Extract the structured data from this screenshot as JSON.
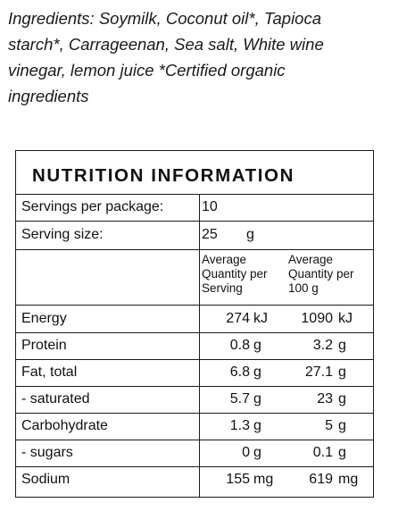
{
  "ingredients": {
    "line1": "Ingredients: Soymilk, Coconut oil*, Tapioca",
    "line2": "starch*, Carrageenan, Sea salt, White wine",
    "line3": "vinegar, lemon juice *Certified organic",
    "line4": "ingredients"
  },
  "nutrition": {
    "title": "NUTRITION INFORMATION",
    "servings_label": "Servings per package:",
    "servings_value": "10",
    "serving_size_label": "Serving size:",
    "serving_size_value": "25",
    "serving_size_unit": "g",
    "col1_header": [
      "Average",
      "Quantity per",
      "Serving"
    ],
    "col2_header": [
      "Average",
      "Quantity per",
      "100 g"
    ],
    "rows": [
      {
        "label": "Energy",
        "serving": "274",
        "serving_unit": "kJ",
        "per100": "1090",
        "per100_unit": "kJ"
      },
      {
        "label": "Protein",
        "serving": "0.8",
        "serving_unit": "g",
        "per100": "3.2",
        "per100_unit": "g"
      },
      {
        "label": "Fat, total",
        "serving": "6.8",
        "serving_unit": "g",
        "per100": "27.1",
        "per100_unit": "g"
      },
      {
        "label": "- saturated",
        "serving": "5.7",
        "serving_unit": "g",
        "per100": "23",
        "per100_unit": "g"
      },
      {
        "label": "Carbohydrate",
        "serving": "1.3",
        "serving_unit": "g",
        "per100": "5",
        "per100_unit": "g"
      },
      {
        "label": "- sugars",
        "serving": "0",
        "serving_unit": "g",
        "per100": "0.1",
        "per100_unit": "g"
      },
      {
        "label": "Sodium",
        "serving": "155",
        "serving_unit": "mg",
        "per100": "619",
        "per100_unit": "mg"
      }
    ]
  }
}
